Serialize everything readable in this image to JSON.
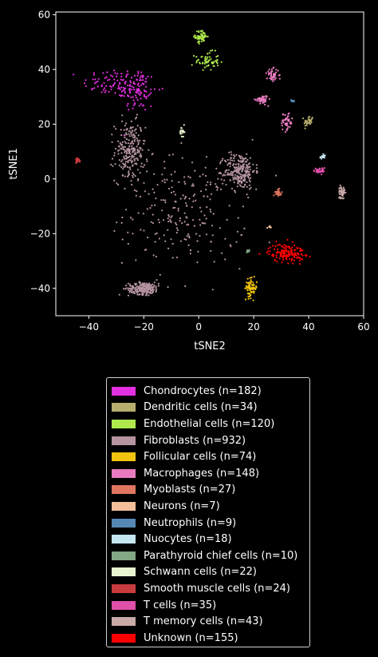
{
  "chart_data": {
    "type": "scatter",
    "title": "",
    "xlabel": "tSNE2",
    "ylabel": "tSNE1",
    "xlim": [
      -52,
      60
    ],
    "ylim": [
      -50,
      61
    ],
    "xticks": [
      -40,
      -20,
      0,
      20,
      40,
      60
    ],
    "yticks": [
      -40,
      -20,
      0,
      20,
      40,
      60
    ],
    "xtick_labels": [
      "−40",
      "−20",
      "0",
      "20",
      "40",
      "60"
    ],
    "ytick_labels": [
      "−40",
      "−20",
      "0",
      "20",
      "40",
      "60"
    ],
    "background": "#000000",
    "grid": false,
    "legend_position": "below",
    "series": [
      {
        "name": "Chondrocytes (n=182)",
        "color": "#e22fe0",
        "n": 182,
        "clusters": [
          [
            -30,
            35,
            11,
            5
          ],
          [
            -22,
            32,
            6,
            7
          ]
        ]
      },
      {
        "name": "Dendritic cells (n=34)",
        "color": "#b7ae6e",
        "n": 34,
        "clusters": [
          [
            40,
            21,
            1.5,
            2
          ]
        ]
      },
      {
        "name": "Endothelial cells (n=120)",
        "color": "#aee84d",
        "n": 120,
        "clusters": [
          [
            3,
            43,
            4,
            3
          ],
          [
            1,
            52,
            2,
            2
          ]
        ]
      },
      {
        "name": "Fibroblasts (n=932)",
        "color": "#b593a1",
        "n": 932,
        "clusters": [
          [
            -5,
            -12,
            20,
            18
          ],
          [
            -25,
            10,
            5,
            10
          ],
          [
            15,
            3,
            5,
            6
          ],
          [
            -20,
            -40,
            5,
            2
          ]
        ]
      },
      {
        "name": "Follicular cells (n=74)",
        "color": "#f1c40f",
        "n": 74,
        "clusters": [
          [
            19,
            -40,
            2,
            3
          ]
        ]
      },
      {
        "name": "Macrophages (n=148)",
        "color": "#e87bc0",
        "n": 148,
        "clusters": [
          [
            27,
            38,
            2,
            2
          ],
          [
            32,
            21,
            2,
            3
          ],
          [
            23,
            29,
            2,
            1.5
          ]
        ]
      },
      {
        "name": "Myoblasts (n=27)",
        "color": "#e07560",
        "n": 27,
        "clusters": [
          [
            29,
            -5,
            1,
            1
          ]
        ]
      },
      {
        "name": "Neurons (n=7)",
        "color": "#f3c09b",
        "n": 7,
        "clusters": [
          [
            26,
            -17.5,
            1,
            0.5
          ]
        ]
      },
      {
        "name": "Neutrophils (n=9)",
        "color": "#5688b5",
        "n": 9,
        "clusters": [
          [
            34,
            28.5,
            0.5,
            0.5
          ]
        ]
      },
      {
        "name": "Nuocytes (n=18)",
        "color": "#c5e6f1",
        "n": 18,
        "clusters": [
          [
            45,
            8,
            1,
            0.8
          ]
        ]
      },
      {
        "name": "Parathyroid chief cells (n=10)",
        "color": "#82a886",
        "n": 10,
        "clusters": [
          [
            18,
            -26.5,
            0.8,
            0.5
          ]
        ]
      },
      {
        "name": "Schwann cells (n=22)",
        "color": "#e8f4cf",
        "n": 22,
        "clusters": [
          [
            -6,
            17,
            0.8,
            2
          ]
        ]
      },
      {
        "name": "Smooth muscle cells (n=24)",
        "color": "#c83b3e",
        "n": 24,
        "clusters": [
          [
            -44,
            7,
            0.8,
            0.8
          ]
        ]
      },
      {
        "name": "T cells (n=35)",
        "color": "#e04fa8",
        "n": 35,
        "clusters": [
          [
            44,
            3,
            2,
            1
          ]
        ]
      },
      {
        "name": "T memory cells (n=43)",
        "color": "#c8aaa8",
        "n": 43,
        "clusters": [
          [
            52,
            -5,
            1,
            2
          ]
        ]
      },
      {
        "name": "Unknown (n=155)",
        "color": "#ff0000",
        "n": 155,
        "clusters": [
          [
            32,
            -27,
            6,
            3
          ]
        ]
      }
    ]
  }
}
